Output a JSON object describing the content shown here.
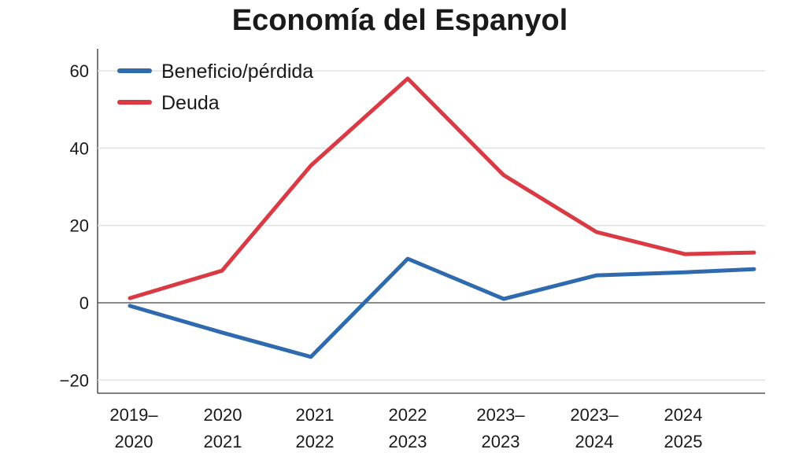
{
  "chart_data": {
    "type": "line",
    "title": "Economía del Espanyol",
    "xlabel": "",
    "ylabel": "",
    "categories": [
      "2019–\n2020",
      "2020\n2021",
      "2021\n2022",
      "2022\n2023",
      "2023–\n2023",
      "2023–\n2024",
      "2024\n2025",
      ""
    ],
    "ylim": [
      -23,
      65
    ],
    "yticks": [
      -20,
      0,
      20,
      40,
      60
    ],
    "grid": true,
    "legend": "top-left",
    "series": [
      {
        "name": "Beneficio/pérdida",
        "color": "#2e6aad",
        "values": [
          -0.8,
          -7.7,
          -14,
          11.4,
          1,
          7.1,
          7.9,
          8.7
        ]
      },
      {
        "name": "Deuda",
        "color": "#d93a44",
        "values": [
          1.2,
          8.3,
          35.5,
          58,
          33,
          18.3,
          12.6,
          13
        ]
      }
    ]
  }
}
